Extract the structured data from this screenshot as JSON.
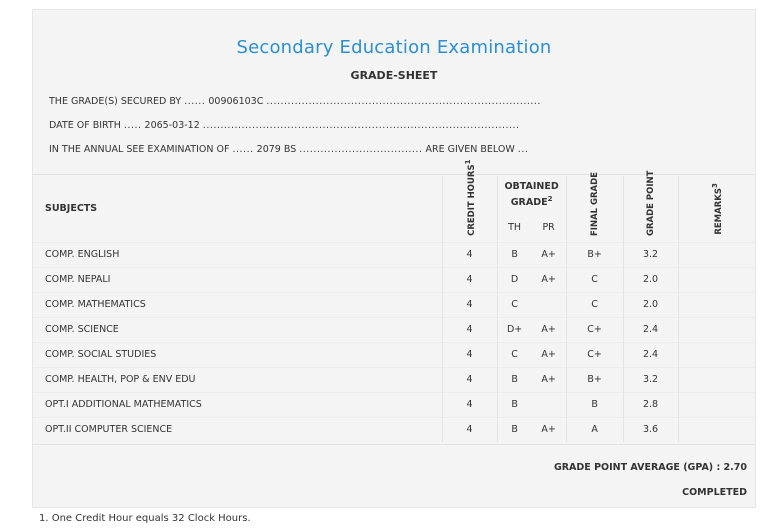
{
  "header": {
    "title": "Secondary Education Examination",
    "subtitle": "GRADE-SHEET"
  },
  "info": {
    "symbol_label": "THE GRADE(S) SECURED BY",
    "symbol_value": "00906103C",
    "dob_label": "DATE OF BIRTH",
    "dob_value": "2065-03-12",
    "exam_label": "IN THE ANNUAL SEE EXAMINATION OF",
    "exam_value": "2079 BS",
    "exam_suffix": "ARE GIVEN BELOW"
  },
  "table": {
    "headers": {
      "subjects": "SUBJECTS",
      "credit_hours": "CREDIT HOURS",
      "credit_sup": "1",
      "obtained_grade": "OBTAINED GRADE",
      "obtained_sup": "2",
      "th": "TH",
      "pr": "PR",
      "final_grade": "FINAL GRADE",
      "grade_point": "GRADE POINT",
      "remarks": "REMARKS",
      "remarks_sup": "3"
    },
    "rows": [
      {
        "subject": "COMP. ENGLISH",
        "credit": "4",
        "th": "B",
        "pr": "A+",
        "final": "B+",
        "gp": "3.2",
        "remarks": ""
      },
      {
        "subject": "COMP. NEPALI",
        "credit": "4",
        "th": "D",
        "pr": "A+",
        "final": "C",
        "gp": "2.0",
        "remarks": ""
      },
      {
        "subject": "COMP. MATHEMATICS",
        "credit": "4",
        "th": "C",
        "pr": "",
        "final": "C",
        "gp": "2.0",
        "remarks": ""
      },
      {
        "subject": "COMP. SCIENCE",
        "credit": "4",
        "th": "D+",
        "pr": "A+",
        "final": "C+",
        "gp": "2.4",
        "remarks": ""
      },
      {
        "subject": "COMP. SOCIAL STUDIES",
        "credit": "4",
        "th": "C",
        "pr": "A+",
        "final": "C+",
        "gp": "2.4",
        "remarks": ""
      },
      {
        "subject": "COMP. HEALTH, POP & ENV EDU",
        "credit": "4",
        "th": "B",
        "pr": "A+",
        "final": "B+",
        "gp": "3.2",
        "remarks": ""
      },
      {
        "subject": "OPT.I ADDITIONAL MATHEMATICS",
        "credit": "4",
        "th": "B",
        "pr": "",
        "final": "B",
        "gp": "2.8",
        "remarks": ""
      },
      {
        "subject": "OPT.II COMPUTER SCIENCE",
        "credit": "4",
        "th": "B",
        "pr": "A+",
        "final": "A",
        "gp": "3.6",
        "remarks": ""
      }
    ]
  },
  "summary": {
    "gpa_text": "GRADE POINT AVERAGE (GPA) : 2.70",
    "status": "COMPLETED"
  },
  "footnote": "1. One Credit Hour equals 32 Clock Hours."
}
